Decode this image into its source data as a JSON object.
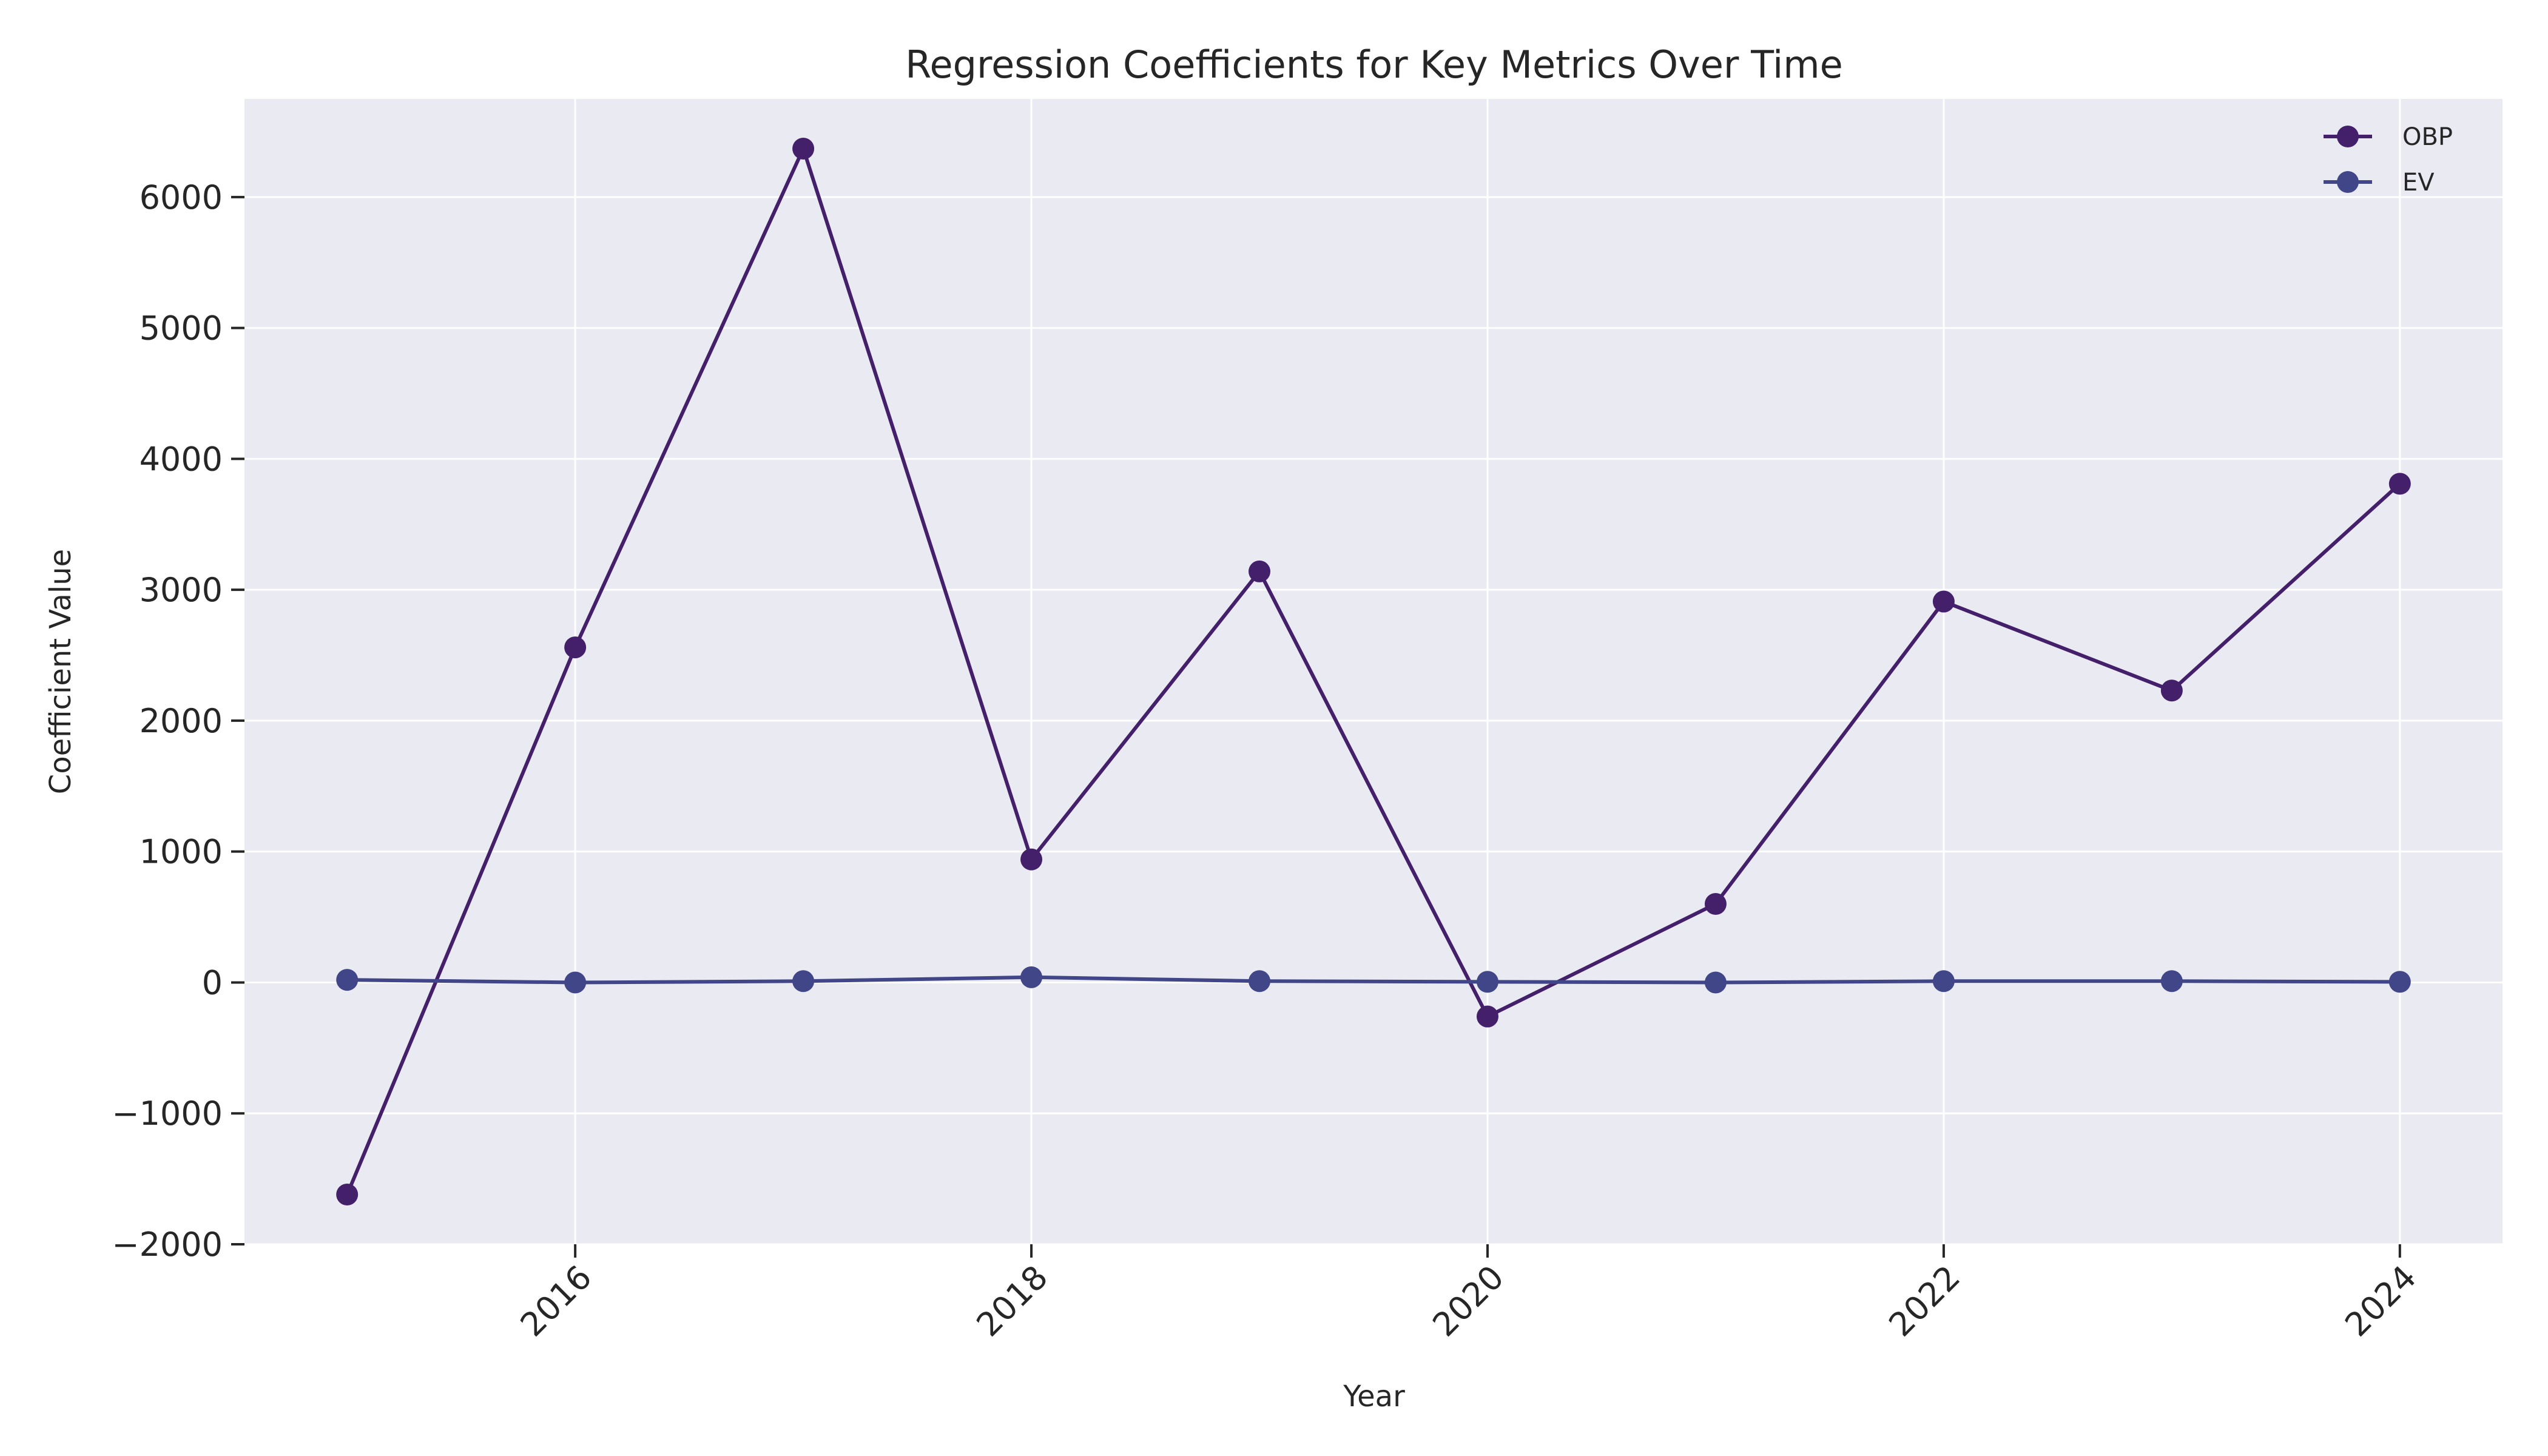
{
  "chart_data": {
    "type": "line",
    "title": "Regression Coefficients for Key Metrics Over Time",
    "xlabel": "Year",
    "ylabel": "Coefficient Value",
    "x": [
      2015,
      2016,
      2017,
      2018,
      2019,
      2020,
      2021,
      2022,
      2023,
      2024
    ],
    "xlim": [
      2014.55,
      2024.45
    ],
    "ylim": [
      -2000,
      6750
    ],
    "x_ticks": [
      2016,
      2018,
      2020,
      2022,
      2024
    ],
    "y_ticks": [
      -2000,
      -1000,
      0,
      1000,
      2000,
      3000,
      4000,
      5000,
      6000
    ],
    "x_tick_labels": [
      "2016",
      "2018",
      "2020",
      "2022",
      "2024"
    ],
    "y_tick_labels": [
      "−2000",
      "−1000",
      "0",
      "1000",
      "2000",
      "3000",
      "4000",
      "5000",
      "6000"
    ],
    "grid": true,
    "legend_position": "top-right",
    "series": [
      {
        "name": "OBP",
        "color": "#44206b",
        "values": [
          -1620,
          2560,
          6370,
          940,
          3140,
          -260,
          600,
          2910,
          2230,
          3810
        ]
      },
      {
        "name": "EV",
        "color": "#404688",
        "values": [
          20,
          0,
          10,
          40,
          10,
          5,
          0,
          10,
          10,
          5
        ]
      }
    ],
    "colors": {
      "plot_background": "#eaeaf2",
      "grid": "#ffffff"
    }
  }
}
